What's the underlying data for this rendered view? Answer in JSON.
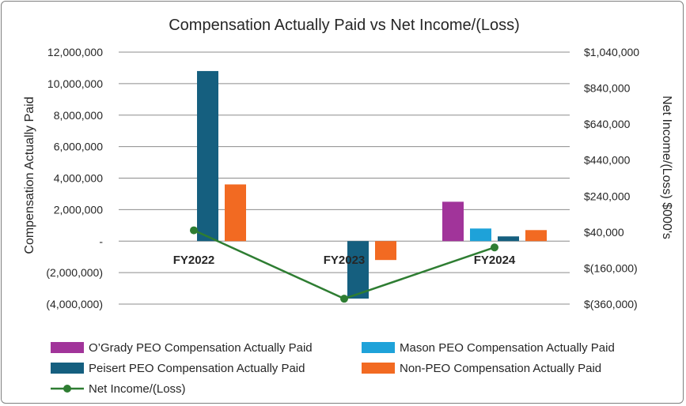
{
  "chart_data": {
    "type": "bar",
    "title": "Compensation Actually Paid vs Net Income/(Loss)",
    "ylabel": "Compensation Actually Paid",
    "y2label": "Net Income/(Loss) $000's",
    "categories": [
      "FY2022",
      "FY2023",
      "FY2024"
    ],
    "ylim": [
      -4000000,
      12000000
    ],
    "y_ticks": [
      -4000000,
      -2000000,
      0,
      2000000,
      4000000,
      6000000,
      8000000,
      10000000,
      12000000
    ],
    "y_tick_labels": [
      "(4,000,000)",
      "(2,000,000)",
      "-",
      "2,000,000",
      "4,000,000",
      "6,000,000",
      "8,000,000",
      "10,000,000",
      "12,000,000"
    ],
    "y2lim": [
      -360000,
      1040000
    ],
    "y2_ticks": [
      -360000,
      -160000,
      40000,
      240000,
      440000,
      640000,
      840000,
      1040000
    ],
    "y2_tick_labels": [
      "$(360,000)",
      "$(160,000)",
      "$40,000",
      "$240,000",
      "$440,000",
      "$640,000",
      "$840,000",
      "$1,040,000"
    ],
    "series": [
      {
        "name": "O’Grady PEO Compensation Actually Paid",
        "color": "#a1349a",
        "values": [
          null,
          null,
          2500000
        ]
      },
      {
        "name": "Mason PEO Compensation Actually Paid",
        "color": "#1ea2d9",
        "values": [
          null,
          null,
          800000
        ]
      },
      {
        "name": "Peisert PEO Compensation Actually Paid",
        "color": "#155f7f",
        "values": [
          10800000,
          -3650000,
          300000
        ]
      },
      {
        "name": "Non-PEO Compensation Actually Paid",
        "color": "#f26a22",
        "values": [
          3600000,
          -1200000,
          700000
        ]
      }
    ],
    "line_series": {
      "name": "Net Income/(Loss)",
      "color": "#2e7d32",
      "axis": "right",
      "values": [
        50000,
        -330000,
        -45000
      ]
    },
    "legend_position": "bottom",
    "grid": true
  }
}
